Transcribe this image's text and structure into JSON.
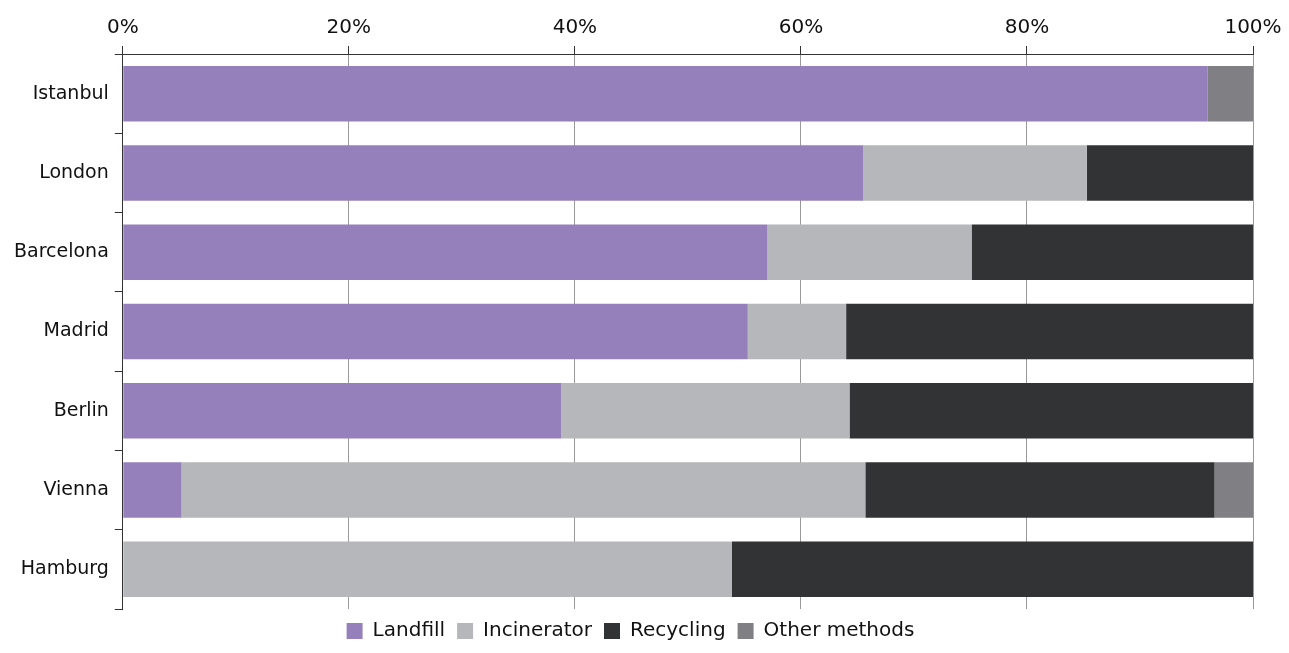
{
  "chart_data": {
    "type": "bar",
    "orientation": "horizontal",
    "stacked": true,
    "categories": [
      "Istanbul",
      "London",
      "Barcelona",
      "Madrid",
      "Berlin",
      "Vienna",
      "Hamburg"
    ],
    "series": [
      {
        "name": "Landfill",
        "color": "#9680bb",
        "values": [
          96.0,
          65.5,
          57.0,
          55.3,
          38.8,
          5.2,
          0
        ]
      },
      {
        "name": "Incinerator",
        "color": "#b6b7ba",
        "values": [
          0,
          19.8,
          18.1,
          8.7,
          25.5,
          60.5,
          53.9
        ]
      },
      {
        "name": "Recycling",
        "color": "#323335",
        "values": [
          0,
          14.7,
          24.9,
          36.0,
          35.7,
          30.9,
          46.1
        ]
      },
      {
        "name": "Other methods",
        "color": "#7f7f84",
        "values": [
          4.0,
          0,
          0,
          0,
          0,
          3.4,
          0
        ]
      }
    ],
    "xlim": [
      0,
      100
    ],
    "xticks": [
      {
        "value": 0,
        "label": "0%"
      },
      {
        "value": 20,
        "label": "20%"
      },
      {
        "value": 40,
        "label": "40%"
      },
      {
        "value": 60,
        "label": "60%"
      },
      {
        "value": 80,
        "label": "80%"
      },
      {
        "value": 100,
        "label": "100%"
      }
    ],
    "grid": "x",
    "legend": "bottom"
  }
}
